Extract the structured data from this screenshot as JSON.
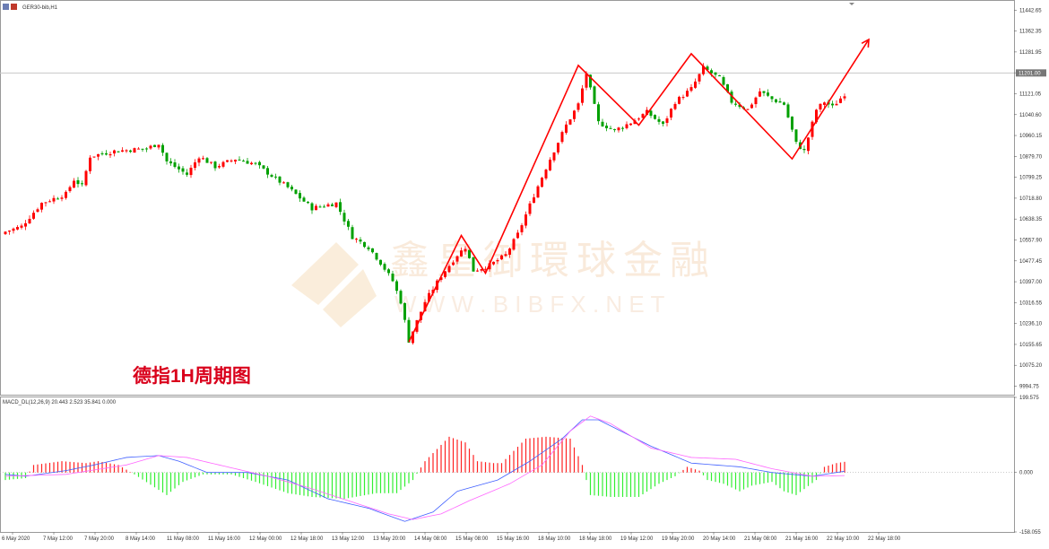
{
  "window": {
    "title": "GER30-bib,H1"
  },
  "annotation": {
    "text": "德指1H周期图",
    "color": "#d9001b"
  },
  "watermark": {
    "brand": "鑫皇御環球金融",
    "url": "W W W . B I B F X . N E T"
  },
  "current_price": "11201.00",
  "macd_panel": {
    "label": "MACD_DL(12,26,9) 20.443 2.523 35.841 0.000",
    "axis_labels": [
      "199.575",
      "0.000",
      "-158.055"
    ],
    "colors": {
      "positive": "#ff2222",
      "negative": "#33ee33",
      "macd_line": "#4060ff",
      "signal_line": "#ff66ff"
    }
  },
  "colors": {
    "bull": "#ff0000",
    "bear": "#00a000",
    "pattern_line": "#ff0000",
    "grid_line": "#c8c8c8"
  },
  "chart_data": [
    {
      "type": "candlestick",
      "symbol": "GER30-bib",
      "timeframe": "H1",
      "price_axis_labels": [
        "11442.65",
        "11362.35",
        "11281.95",
        "11201.50",
        "11121.05",
        "11040.60",
        "10960.15",
        "10879.70",
        "10799.25",
        "10718.80",
        "10638.35",
        "10557.90",
        "10477.45",
        "10397.00",
        "10316.55",
        "10236.10",
        "10155.65",
        "10075.20",
        "9994.75"
      ],
      "ylim": [
        9962,
        11475
      ],
      "time_axis_labels": [
        "6 May 2020",
        "7 May 12:00",
        "7 May 20:00",
        "8 May 14:00",
        "11 May 08:00",
        "11 May 16:00",
        "12 May 00:00",
        "12 May 18:00",
        "13 May 12:00",
        "13 May 20:00",
        "14 May 08:00",
        "15 May 08:00",
        "15 May 16:00",
        "18 May 10:00",
        "18 May 18:00",
        "19 May 12:00",
        "19 May 20:00",
        "20 May 14:00",
        "21 May 08:00",
        "21 May 16:00",
        "22 May 10:00",
        "22 May 18:00"
      ],
      "candle_count": 209,
      "close_path": [
        [
          0,
          10590
        ],
        [
          4,
          10610
        ],
        [
          9,
          10700
        ],
        [
          15,
          10735
        ],
        [
          17,
          10790
        ],
        [
          19,
          10765
        ],
        [
          21,
          10880
        ],
        [
          27,
          10900
        ],
        [
          35,
          10910
        ],
        [
          38,
          10930
        ],
        [
          40,
          10860
        ],
        [
          45,
          10810
        ],
        [
          48,
          10880
        ],
        [
          52,
          10840
        ],
        [
          57,
          10870
        ],
        [
          62,
          10850
        ],
        [
          70,
          10760
        ],
        [
          76,
          10680
        ],
        [
          82,
          10700
        ],
        [
          86,
          10570
        ],
        [
          90,
          10530
        ],
        [
          93,
          10470
        ],
        [
          96,
          10400
        ],
        [
          98,
          10320
        ],
        [
          100,
          10170
        ],
        [
          104,
          10320
        ],
        [
          108,
          10420
        ],
        [
          112,
          10500
        ],
        [
          114,
          10530
        ],
        [
          116,
          10440
        ],
        [
          120,
          10460
        ],
        [
          124,
          10500
        ],
        [
          127,
          10580
        ],
        [
          131,
          10730
        ],
        [
          135,
          10870
        ],
        [
          139,
          11000
        ],
        [
          142,
          11080
        ],
        [
          144,
          11200
        ],
        [
          147,
          11010
        ],
        [
          151,
          10980
        ],
        [
          155,
          11010
        ],
        [
          159,
          11050
        ],
        [
          163,
          11000
        ],
        [
          166,
          11090
        ],
        [
          170,
          11140
        ],
        [
          173,
          11220
        ],
        [
          177,
          11180
        ],
        [
          180,
          11090
        ],
        [
          184,
          11060
        ],
        [
          187,
          11130
        ],
        [
          190,
          11100
        ],
        [
          193,
          11080
        ],
        [
          196,
          10930
        ],
        [
          198,
          10900
        ],
        [
          201,
          11060
        ],
        [
          203,
          11090
        ],
        [
          205,
          11070
        ],
        [
          208,
          11120
        ],
        [
          209,
          11200
        ]
      ],
      "pattern_lines": [
        {
          "x": 100,
          "y": 10165
        },
        {
          "x": 113,
          "y": 10575
        },
        {
          "x": 119,
          "y": 10430
        },
        {
          "x": 142,
          "y": 11230
        },
        {
          "x": 157,
          "y": 11000
        },
        {
          "x": 170,
          "y": 11275
        },
        {
          "x": 195,
          "y": 10870
        },
        {
          "x": 208,
          "y": 11185
        },
        {
          "x": 214,
          "y": 11330
        }
      ]
    },
    {
      "type": "bar",
      "name": "MACD_DL(12,26,9)",
      "ylim": [
        -158.055,
        199.575
      ],
      "histogram_path": [
        [
          0,
          -20
        ],
        [
          5,
          -15
        ],
        [
          7,
          20
        ],
        [
          14,
          30
        ],
        [
          20,
          25
        ],
        [
          23,
          30
        ],
        [
          28,
          20
        ],
        [
          32,
          -5
        ],
        [
          40,
          -60
        ],
        [
          44,
          -25
        ],
        [
          49,
          -5
        ],
        [
          56,
          -5
        ],
        [
          62,
          -25
        ],
        [
          70,
          -55
        ],
        [
          76,
          -65
        ],
        [
          84,
          -70
        ],
        [
          92,
          -55
        ],
        [
          97,
          -55
        ],
        [
          101,
          -20
        ],
        [
          104,
          30
        ],
        [
          110,
          95
        ],
        [
          114,
          80
        ],
        [
          117,
          30
        ],
        [
          121,
          25
        ],
        [
          123,
          25
        ],
        [
          129,
          90
        ],
        [
          134,
          95
        ],
        [
          140,
          90
        ],
        [
          143,
          20
        ],
        [
          145,
          -60
        ],
        [
          150,
          -65
        ],
        [
          157,
          -65
        ],
        [
          162,
          -30
        ],
        [
          166,
          -10
        ],
        [
          169,
          15
        ],
        [
          172,
          5
        ],
        [
          174,
          -20
        ],
        [
          178,
          -30
        ],
        [
          182,
          -50
        ],
        [
          185,
          -35
        ],
        [
          190,
          -25
        ],
        [
          193,
          -50
        ],
        [
          196,
          -60
        ],
        [
          201,
          -20
        ],
        [
          203,
          15
        ],
        [
          206,
          25
        ],
        [
          209,
          30
        ]
      ],
      "macd_line_path": [
        [
          0,
          -5
        ],
        [
          5,
          -10
        ],
        [
          15,
          5
        ],
        [
          22,
          20
        ],
        [
          30,
          40
        ],
        [
          38,
          45
        ],
        [
          43,
          30
        ],
        [
          50,
          0
        ],
        [
          60,
          0
        ],
        [
          70,
          -20
        ],
        [
          80,
          -70
        ],
        [
          90,
          -95
        ],
        [
          99,
          -130
        ],
        [
          106,
          -105
        ],
        [
          112,
          -50
        ],
        [
          122,
          -20
        ],
        [
          130,
          30
        ],
        [
          138,
          90
        ],
        [
          143,
          140
        ],
        [
          147,
          140
        ],
        [
          160,
          70
        ],
        [
          170,
          25
        ],
        [
          182,
          15
        ],
        [
          190,
          0
        ],
        [
          200,
          -10
        ],
        [
          209,
          5
        ]
      ],
      "signal_line_path": [
        [
          0,
          -10
        ],
        [
          15,
          -5
        ],
        [
          30,
          20
        ],
        [
          38,
          45
        ],
        [
          45,
          40
        ],
        [
          55,
          15
        ],
        [
          65,
          -10
        ],
        [
          75,
          -40
        ],
        [
          85,
          -75
        ],
        [
          95,
          -110
        ],
        [
          101,
          -125
        ],
        [
          108,
          -110
        ],
        [
          115,
          -75
        ],
        [
          125,
          -30
        ],
        [
          133,
          20
        ],
        [
          140,
          110
        ],
        [
          145,
          150
        ],
        [
          150,
          130
        ],
        [
          160,
          65
        ],
        [
          170,
          40
        ],
        [
          181,
          35
        ],
        [
          190,
          10
        ],
        [
          200,
          -10
        ],
        [
          209,
          -8
        ]
      ]
    }
  ]
}
